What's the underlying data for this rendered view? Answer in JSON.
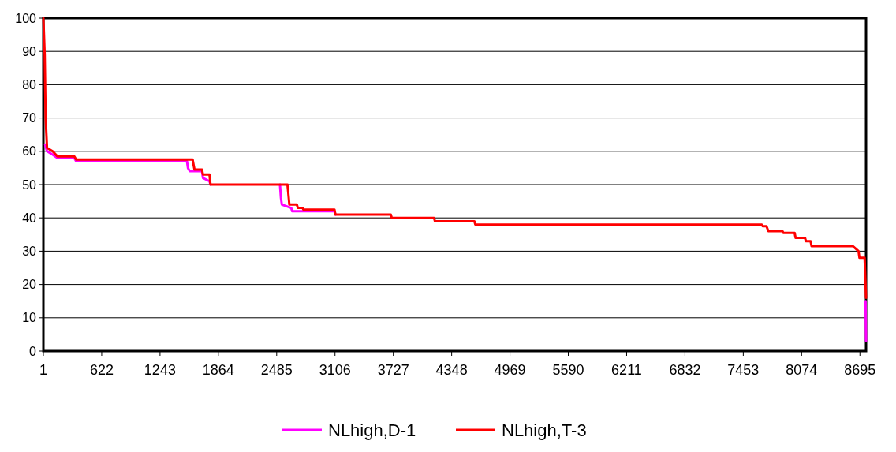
{
  "chart_data": {
    "type": "line",
    "xlim": [
      1,
      8760
    ],
    "xticks": [
      1,
      622,
      1243,
      1864,
      2485,
      3106,
      3727,
      4348,
      4969,
      5590,
      6211,
      6832,
      7453,
      8074,
      8695
    ],
    "ylim": [
      0,
      100
    ],
    "yticks": [
      0,
      10,
      20,
      30,
      40,
      50,
      60,
      70,
      80,
      90,
      100
    ],
    "grid": "y",
    "legend": "bottom",
    "marker": "none",
    "line_style": "solid",
    "series": [
      {
        "name": "NLhigh,D-1",
        "color": "#ff00ff",
        "x": [
          20,
          40,
          100,
          150,
          330,
          350,
          1530,
          1540,
          1560,
          1690,
          1700,
          1770,
          1780,
          1800,
          2520,
          2530,
          2540,
          2640,
          2650,
          3100,
          3110,
          3700,
          3710,
          4160,
          4170,
          4590,
          4600,
          7650,
          7660,
          7700,
          7720,
          7870,
          7880,
          8000,
          8010,
          8110,
          8120,
          8170,
          8180,
          8620,
          8640,
          8680,
          8690,
          8745,
          8755,
          8760
        ],
        "values": [
          62,
          60,
          59,
          58,
          58,
          57,
          57,
          55,
          54,
          54,
          52,
          51,
          50,
          null,
          50,
          46,
          44,
          43,
          42,
          42,
          41,
          null,
          null,
          null,
          null,
          null,
          null,
          null,
          null,
          null,
          null,
          null,
          null,
          null,
          null,
          null,
          null,
          null,
          null,
          null,
          null,
          null,
          null,
          null,
          15,
          3
        ]
      },
      {
        "name": "NLhigh,T-3",
        "color": "#ff0000",
        "x": [
          1,
          15,
          25,
          40,
          100,
          150,
          330,
          350,
          1590,
          1600,
          1610,
          1690,
          1700,
          1770,
          1780,
          1840,
          2600,
          2610,
          2620,
          2700,
          2710,
          2760,
          2770,
          3100,
          3110,
          3700,
          3710,
          4160,
          4170,
          4590,
          4600,
          7650,
          7660,
          7700,
          7720,
          7870,
          7880,
          8000,
          8010,
          8110,
          8120,
          8170,
          8180,
          8620,
          8640,
          8680,
          8690,
          8745,
          8755,
          8760
        ],
        "values": [
          100,
          89,
          70,
          61,
          60,
          58.5,
          58.5,
          57.5,
          57.5,
          56,
          54.5,
          54.5,
          53,
          53,
          50,
          50,
          50,
          47,
          44,
          44,
          43,
          43,
          42.5,
          42.5,
          41,
          41,
          40,
          40,
          39,
          39,
          38,
          38,
          37.5,
          37.5,
          36,
          36,
          35.5,
          35.5,
          34,
          34,
          33,
          33,
          31.5,
          31.5,
          31,
          30,
          28,
          28,
          20,
          16
        ]
      }
    ]
  }
}
